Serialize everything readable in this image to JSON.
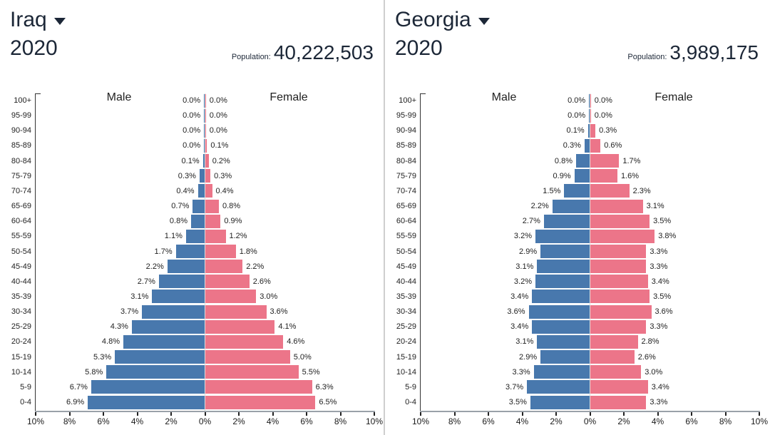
{
  "colors": {
    "male_bar": "#4878AD",
    "female_bar": "#EC7589",
    "title_text": "#1c2737",
    "chart_text": "#222222",
    "axis_line": "#9aa1a9"
  },
  "chart_data": [
    {
      "type": "bar",
      "orientation": "population-pyramid",
      "title": "Iraq",
      "year": "2020",
      "population_label": "Population:",
      "population": "40,222,503",
      "legend": [
        "Male",
        "Female"
      ],
      "categories": [
        "100+",
        "95-99",
        "90-94",
        "85-89",
        "80-84",
        "75-79",
        "70-74",
        "65-69",
        "60-64",
        "55-59",
        "50-54",
        "45-49",
        "40-44",
        "35-39",
        "30-34",
        "25-29",
        "20-24",
        "15-19",
        "10-14",
        "5-9",
        "0-4"
      ],
      "series": [
        {
          "name": "Male",
          "values": [
            0.0,
            0.0,
            0.0,
            0.0,
            0.1,
            0.3,
            0.4,
            0.7,
            0.8,
            1.1,
            1.7,
            2.2,
            2.7,
            3.1,
            3.7,
            4.3,
            4.8,
            5.3,
            5.8,
            6.7,
            6.9
          ]
        },
        {
          "name": "Female",
          "values": [
            0.0,
            0.0,
            0.0,
            0.1,
            0.2,
            0.3,
            0.4,
            0.8,
            0.9,
            1.2,
            1.8,
            2.2,
            2.6,
            3.0,
            3.6,
            4.1,
            4.6,
            5.0,
            5.5,
            6.3,
            6.5
          ]
        }
      ],
      "value_suffix": "%",
      "xlim": [
        -10,
        10
      ],
      "x_tick_labels": [
        "10%",
        "8%",
        "6%",
        "4%",
        "2%",
        "0%",
        "2%",
        "4%",
        "6%",
        "8%",
        "10%"
      ]
    },
    {
      "type": "bar",
      "orientation": "population-pyramid",
      "title": "Georgia",
      "year": "2020",
      "population_label": "Population:",
      "population": "3,989,175",
      "legend": [
        "Male",
        "Female"
      ],
      "categories": [
        "100+",
        "95-99",
        "90-94",
        "85-89",
        "80-84",
        "75-79",
        "70-74",
        "65-69",
        "60-64",
        "55-59",
        "50-54",
        "45-49",
        "40-44",
        "35-39",
        "30-34",
        "25-29",
        "20-24",
        "15-19",
        "10-14",
        "5-9",
        "0-4"
      ],
      "series": [
        {
          "name": "Male",
          "values": [
            0.0,
            0.0,
            0.1,
            0.3,
            0.8,
            0.9,
            1.5,
            2.2,
            2.7,
            3.2,
            2.9,
            3.1,
            3.2,
            3.4,
            3.6,
            3.4,
            3.1,
            2.9,
            3.3,
            3.7,
            3.5
          ]
        },
        {
          "name": "Female",
          "values": [
            0.0,
            0.0,
            0.3,
            0.6,
            1.7,
            1.6,
            2.3,
            3.1,
            3.5,
            3.8,
            3.3,
            3.3,
            3.4,
            3.5,
            3.6,
            3.3,
            2.8,
            2.6,
            3.0,
            3.4,
            3.3
          ]
        }
      ],
      "value_suffix": "%",
      "xlim": [
        -10,
        10
      ],
      "x_tick_labels": [
        "10%",
        "8%",
        "6%",
        "4%",
        "2%",
        "0%",
        "2%",
        "4%",
        "6%",
        "8%",
        "10%"
      ]
    }
  ]
}
